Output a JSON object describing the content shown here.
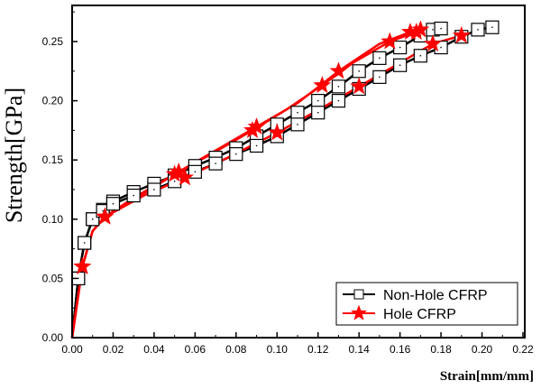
{
  "chart_data": {
    "type": "line",
    "xlabel": "Strain[mm/mm]",
    "ylabel": "Strength[GPa]",
    "xlim": [
      0,
      0.22
    ],
    "ylim": [
      0,
      0.27
    ],
    "xticks": [
      "0.00",
      "0.02",
      "0.04",
      "0.06",
      "0.08",
      "0.10",
      "0.12",
      "0.14",
      "0.16",
      "0.18",
      "0.20",
      "0.22"
    ],
    "yticks": [
      "0.00",
      "0.05",
      "0.10",
      "0.15",
      "0.20",
      "0.25"
    ],
    "grid": false,
    "legend_position": "bottom-right",
    "series": [
      {
        "name": "Non-Hole CFRP",
        "color": "#000000",
        "marker": "square",
        "curves": [
          [
            [
              0,
              0
            ],
            [
              0.003,
              0.05
            ],
            [
              0.006,
              0.08
            ],
            [
              0.01,
              0.1
            ],
            [
              0.015,
              0.108
            ],
            [
              0.02,
              0.115
            ],
            [
              0.03,
              0.123
            ],
            [
              0.04,
              0.13
            ],
            [
              0.05,
              0.137
            ],
            [
              0.06,
              0.145
            ],
            [
              0.07,
              0.152
            ],
            [
              0.08,
              0.16
            ],
            [
              0.09,
              0.17
            ],
            [
              0.1,
              0.18
            ],
            [
              0.11,
              0.19
            ],
            [
              0.12,
              0.2
            ],
            [
              0.13,
              0.212
            ],
            [
              0.14,
              0.225
            ],
            [
              0.15,
              0.236
            ],
            [
              0.16,
              0.245
            ],
            [
              0.17,
              0.255
            ],
            [
              0.176,
              0.26
            ],
            [
              0.18,
              0.261
            ]
          ],
          [
            [
              0,
              0
            ],
            [
              0.003,
              0.05
            ],
            [
              0.006,
              0.08
            ],
            [
              0.01,
              0.1
            ],
            [
              0.015,
              0.107
            ],
            [
              0.02,
              0.113
            ],
            [
              0.03,
              0.12
            ],
            [
              0.04,
              0.125
            ],
            [
              0.05,
              0.132
            ],
            [
              0.06,
              0.14
            ],
            [
              0.07,
              0.147
            ],
            [
              0.08,
              0.155
            ],
            [
              0.09,
              0.162
            ],
            [
              0.1,
              0.17
            ],
            [
              0.11,
              0.18
            ],
            [
              0.12,
              0.19
            ],
            [
              0.13,
              0.2
            ],
            [
              0.14,
              0.21
            ],
            [
              0.15,
              0.22
            ],
            [
              0.16,
              0.23
            ],
            [
              0.17,
              0.238
            ],
            [
              0.18,
              0.245
            ],
            [
              0.19,
              0.254
            ],
            [
              0.198,
              0.26
            ],
            [
              0.205,
              0.262
            ]
          ]
        ]
      },
      {
        "name": "Hole CFRP",
        "color": "#ff0000",
        "marker": "star",
        "curves": [
          [
            [
              0,
              0
            ],
            [
              0.005,
              0.06
            ],
            [
              0.01,
              0.09
            ],
            [
              0.016,
              0.102
            ],
            [
              0.03,
              0.118
            ],
            [
              0.05,
              0.138
            ],
            [
              0.07,
              0.158
            ],
            [
              0.09,
              0.178
            ],
            [
              0.11,
              0.198
            ],
            [
              0.13,
              0.225
            ],
            [
              0.15,
              0.248
            ],
            [
              0.165,
              0.258
            ],
            [
              0.17,
              0.26
            ]
          ],
          [
            [
              0,
              0
            ],
            [
              0.005,
              0.06
            ],
            [
              0.01,
              0.09
            ],
            [
              0.016,
              0.102
            ],
            [
              0.035,
              0.122
            ],
            [
              0.052,
              0.14
            ],
            [
              0.068,
              0.155
            ],
            [
              0.088,
              0.175
            ],
            [
              0.105,
              0.193
            ],
            [
              0.122,
              0.213
            ],
            [
              0.137,
              0.232
            ],
            [
              0.155,
              0.25
            ],
            [
              0.168,
              0.258
            ]
          ],
          [
            [
              0,
              0
            ],
            [
              0.005,
              0.06
            ],
            [
              0.01,
              0.09
            ],
            [
              0.016,
              0.102
            ],
            [
              0.035,
              0.12
            ],
            [
              0.055,
              0.135
            ],
            [
              0.076,
              0.152
            ],
            [
              0.1,
              0.173
            ],
            [
              0.12,
              0.192
            ],
            [
              0.14,
              0.212
            ],
            [
              0.16,
              0.232
            ],
            [
              0.176,
              0.248
            ],
            [
              0.19,
              0.255
            ]
          ]
        ]
      }
    ]
  }
}
